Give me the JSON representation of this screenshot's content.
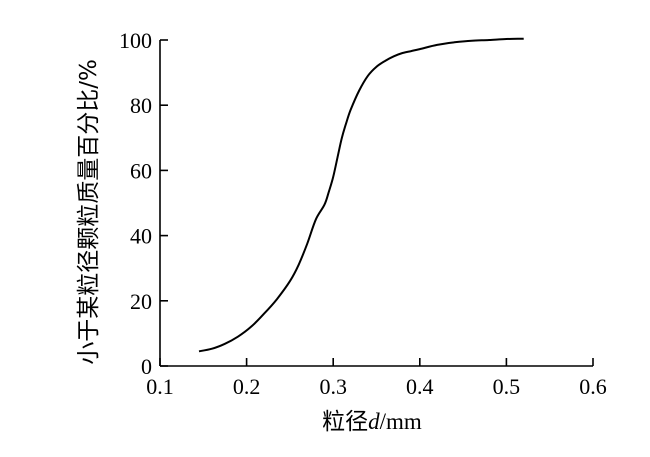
{
  "chart_data": {
    "type": "line",
    "title": "",
    "xlabel": "粒径d/mm",
    "xlabel_parts": {
      "prefix": "粒径",
      "italic": "d",
      "suffix": "/mm"
    },
    "ylabel": "小于某粒径颗粒质量百分比/%",
    "xlim": [
      0.1,
      0.6
    ],
    "ylim": [
      0,
      100
    ],
    "x_ticks": [
      0.1,
      0.2,
      0.3,
      0.4,
      0.5,
      0.6
    ],
    "x_tick_labels": [
      "0.1",
      "0.2",
      "0.3",
      "0.4",
      "0.5",
      "0.6"
    ],
    "y_ticks": [
      0,
      20,
      40,
      60,
      80,
      100
    ],
    "y_tick_labels": [
      "0",
      "20",
      "40",
      "60",
      "80",
      "100"
    ],
    "grid": false,
    "series": [
      {
        "x": [
          0.145,
          0.16,
          0.175,
          0.19,
          0.205,
          0.22,
          0.235,
          0.25,
          0.26,
          0.27,
          0.28,
          0.29,
          0.295,
          0.3,
          0.305,
          0.31,
          0.315,
          0.32,
          0.33,
          0.34,
          0.35,
          0.36,
          0.37,
          0.38,
          0.39,
          0.4,
          0.42,
          0.44,
          0.46,
          0.48,
          0.5,
          0.52
        ],
        "y": [
          4.5,
          5.3,
          6.8,
          9.0,
          12.0,
          16.0,
          20.5,
          26.0,
          31.0,
          37.5,
          45.0,
          49.5,
          53.5,
          58.0,
          64.0,
          70.0,
          74.5,
          78.5,
          84.5,
          89.0,
          91.8,
          93.6,
          95.0,
          96.0,
          96.6,
          97.2,
          98.5,
          99.3,
          99.8,
          100.0,
          100.3,
          100.4
        ]
      }
    ]
  }
}
